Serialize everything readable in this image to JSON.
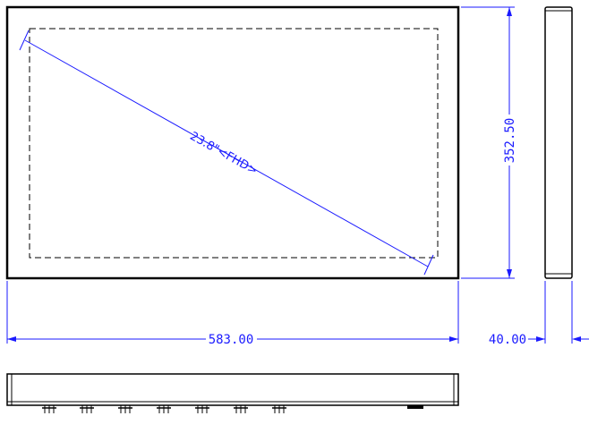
{
  "drawing": {
    "diagonal_label": "23.8\"<FHD>",
    "width_dim": "583.00",
    "height_dim": "352.50",
    "depth_dim": "40.00"
  },
  "colors": {
    "outline": "#000000",
    "dimension": "#1a1aff",
    "background": "#ffffff"
  }
}
